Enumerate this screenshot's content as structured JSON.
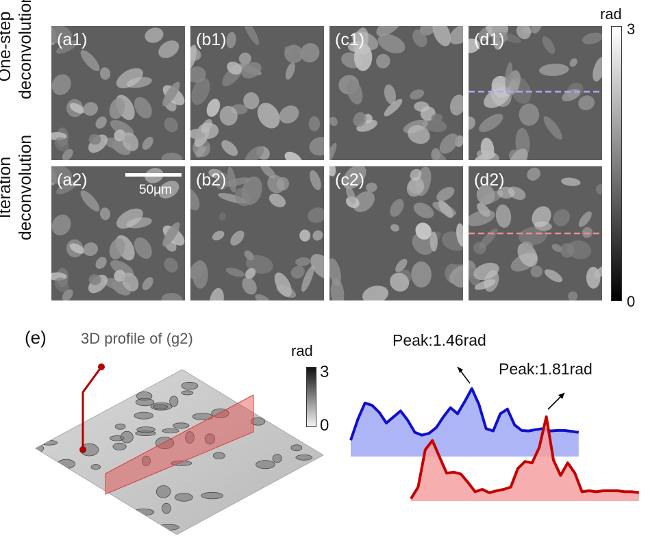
{
  "row_labels": {
    "row1_line1": "One-step",
    "row1_line2": "deconvolution",
    "row2_line1": "Iteration",
    "row2_line2": "deconvolution"
  },
  "panels": {
    "a1": "(a1)",
    "b1": "(b1)",
    "c1": "(c1)",
    "d1": "(d1)",
    "a2": "(a2)",
    "b2": "(b2)",
    "c2": "(c2)",
    "d2": "(d2)"
  },
  "scale_bar_label": "50μm",
  "colorbar_main": {
    "unit": "rad",
    "max": "3",
    "min": "0"
  },
  "panel_e": {
    "label": "(e)",
    "title": "3D profile of (g2)",
    "colorbar_unit": "rad",
    "colorbar_max": "3",
    "colorbar_min": "0",
    "peak_blue": "Peak:1.46rad",
    "peak_red": "Peak:1.81rad"
  },
  "colors": {
    "blue_line": "#1010cc",
    "blue_fill": "#9fa8f5",
    "red_line": "#c40000",
    "red_fill": "#f5a0a0",
    "dash_blue": "#a9a8f7",
    "dash_red": "#f08c8c",
    "stick": "#b30000"
  },
  "chart_data": [
    {
      "type": "area",
      "name": "",
      "x": [
        0,
        10,
        20,
        30,
        40,
        50,
        60,
        70,
        80,
        90,
        100,
        110,
        120,
        130,
        140,
        150,
        160,
        170,
        180,
        190,
        200,
        210,
        220,
        230,
        240,
        250,
        260,
        270,
        280,
        290,
        300,
        310,
        320
      ],
      "values": [
        0.35,
        0.8,
        1.15,
        1.1,
        0.95,
        0.72,
        0.85,
        0.98,
        0.78,
        0.52,
        0.46,
        0.5,
        0.62,
        0.85,
        1.05,
        0.92,
        1.18,
        1.46,
        1.12,
        0.6,
        0.55,
        0.92,
        1.02,
        0.68,
        0.56,
        0.55,
        0.58,
        0.6,
        0.55,
        0.56,
        0.56,
        0.54,
        0.52
      ]
    },
    {
      "type": "area",
      "name": "",
      "x": [
        0,
        10,
        20,
        30,
        40,
        50,
        60,
        70,
        80,
        90,
        100,
        110,
        120,
        130,
        140,
        150,
        160,
        170,
        180,
        190,
        200,
        210,
        220,
        230,
        240,
        250,
        260,
        270,
        280,
        290,
        300,
        310,
        320
      ],
      "values": [
        0.05,
        0.3,
        1.1,
        1.3,
        0.95,
        0.6,
        0.62,
        0.58,
        0.4,
        0.2,
        0.25,
        0.18,
        0.22,
        0.25,
        0.3,
        0.7,
        0.85,
        0.82,
        1.15,
        1.81,
        0.88,
        0.55,
        0.82,
        0.6,
        0.2,
        0.22,
        0.2,
        0.22,
        0.22,
        0.22,
        0.2,
        0.2,
        0.18
      ]
    }
  ]
}
